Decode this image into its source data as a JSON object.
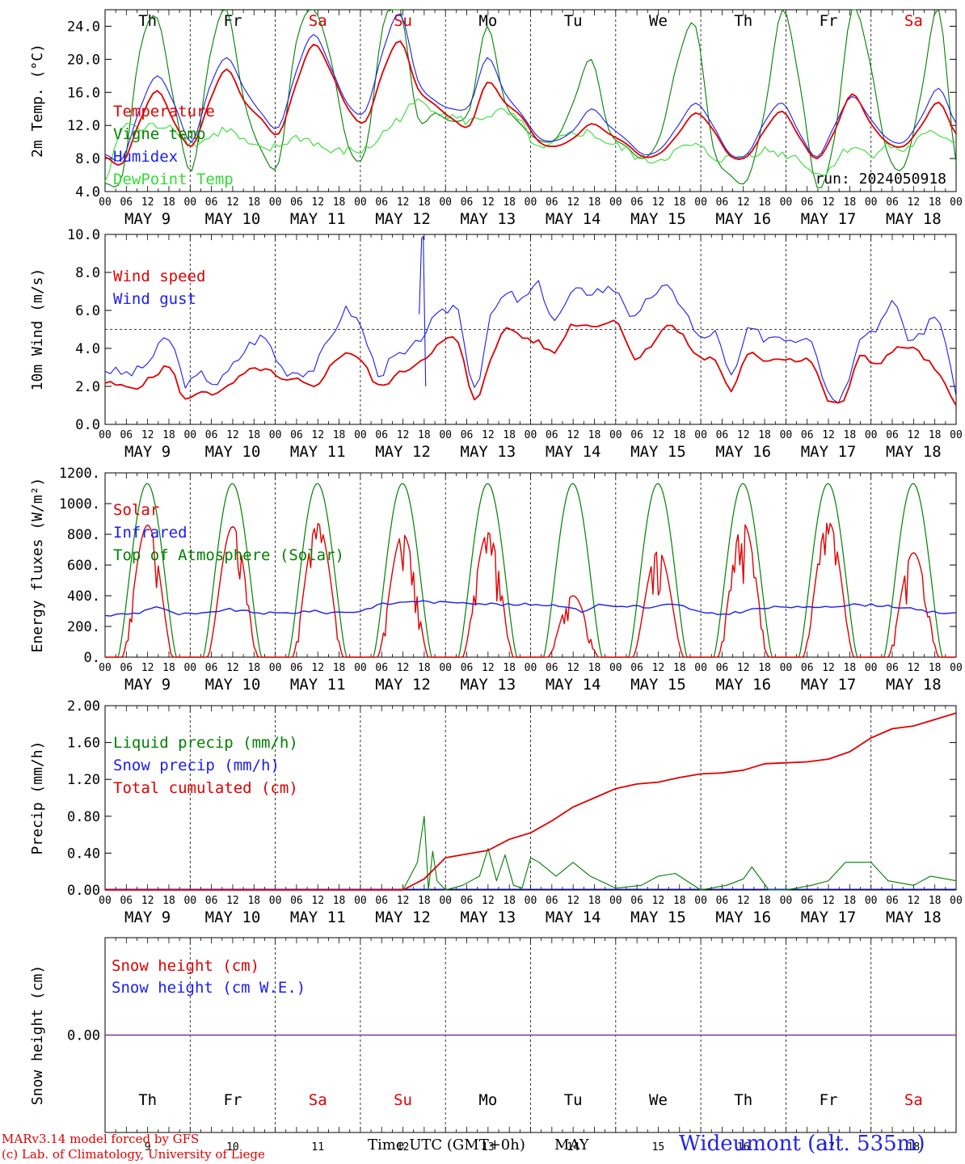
{
  "colors": {
    "red": "#e00000",
    "green": "#008000",
    "light_green": "#33dd33",
    "blue": "#1c1cf0",
    "purple": "#7733aa"
  },
  "footer": {
    "credit_line1": "MARv3.14 model forced by GFS",
    "credit_line2": "(c) Lab. of Climatology, University of Liege",
    "time_label": "Time UTC (GMT+0h)",
    "month": "MAY",
    "station": "Wideumont (alt. 535m)"
  },
  "chart_data": [
    {
      "type": "line",
      "id": "temperature",
      "ylabel": "2m Temp. (°C)",
      "ylim": [
        4.0,
        26.0
      ],
      "yticks": [
        "4.0",
        "8.0",
        "12.0",
        "16.0",
        "20.0",
        "24.0"
      ],
      "x_hours_start": "MAY 9 00 UTC",
      "x_step_hours": 6,
      "x_ticks_per_day": [
        "00",
        "06",
        "12",
        "18"
      ],
      "date_labels": [
        "MAY  9",
        "MAY 10",
        "MAY 11",
        "MAY 12",
        "MAY 13",
        "MAY 14",
        "MAY 15",
        "MAY 16",
        "MAY 17",
        "MAY 18"
      ],
      "day_names": [
        "Th",
        "Fr",
        "Sa",
        "Su",
        "Mo",
        "Tu",
        "We",
        "Th",
        "Fr",
        "Sa"
      ],
      "weekend_days": [
        2,
        3,
        9
      ],
      "annotation": "run: 2024050918",
      "legend": [
        "Temperature",
        "Vigne temp",
        "Humidex",
        "DewPoint Temp"
      ],
      "series": [
        {
          "name": "Temperature",
          "color": "red",
          "values": [
            8.2,
            7.4,
            12.5,
            16.2,
            12.3,
            9.5,
            14.8,
            18.8,
            15.0,
            12.8,
            11.0,
            17.0,
            21.8,
            18.5,
            14.0,
            12.5,
            18.5,
            22.2,
            16.5,
            14.5,
            12.8,
            12.0,
            17.2,
            14.8,
            13.0,
            10.0,
            9.5,
            10.5,
            12.2,
            11.0,
            9.8,
            8.2,
            8.7,
            11.0,
            13.5,
            11.5,
            8.3,
            8.3,
            11.5,
            13.7,
            10.5,
            8.0,
            11.3,
            15.8,
            12.5,
            10.0,
            9.5,
            12.0,
            14.8,
            11.0
          ]
        },
        {
          "name": "Humidex",
          "color": "blue",
          "values": [
            8.5,
            8.0,
            14.0,
            18.0,
            14.5,
            10.0,
            16.5,
            20.2,
            16.5,
            13.5,
            11.8,
            18.5,
            23.0,
            19.0,
            14.5,
            13.8,
            21.0,
            25.5,
            17.5,
            15.0,
            14.0,
            14.5,
            20.2,
            16.0,
            13.3,
            10.5,
            10.2,
            11.5,
            14.0,
            12.0,
            10.3,
            8.5,
            9.2,
            12.0,
            14.7,
            12.0,
            8.5,
            8.6,
            12.5,
            14.7,
            11.0,
            8.2,
            12.0,
            15.5,
            13.0,
            10.5,
            10.0,
            13.0,
            16.5,
            12.3
          ]
        },
        {
          "name": "Vigne temp",
          "color": "green",
          "values": [
            5.0,
            6.0,
            21.0,
            25.0,
            14.5,
            6.5,
            20.0,
            26.0,
            15.0,
            9.0,
            7.5,
            22.0,
            26.0,
            20.0,
            9.5,
            9.0,
            24.0,
            26.0,
            13.0,
            13.5,
            12.5,
            14.0,
            24.0,
            15.0,
            12.0,
            10.2,
            10.5,
            15.0,
            20.0,
            11.5,
            9.5,
            8.0,
            11.0,
            20.0,
            24.0,
            9.5,
            6.0,
            5.5,
            14.0,
            26.0,
            17.0,
            4.5,
            10.5,
            26.0,
            20.0,
            9.0,
            7.0,
            16.0,
            26.0,
            7.5
          ]
        },
        {
          "name": "DewPoint Temp",
          "color": "light_green",
          "values": [
            5.2,
            11.8,
            11.5,
            12.0,
            11.8,
            9.8,
            10.5,
            11.5,
            10.0,
            9.0,
            9.5,
            10.5,
            10.0,
            8.8,
            9.0,
            9.0,
            11.0,
            13.0,
            14.8,
            14.0,
            13.0,
            12.5,
            13.2,
            13.5,
            12.0,
            9.0,
            10.0,
            11.0,
            11.0,
            9.8,
            9.0,
            7.8,
            8.0,
            9.0,
            9.5,
            8.2,
            8.0,
            8.5,
            9.0,
            8.5,
            8.0,
            6.0,
            7.5,
            9.5,
            8.5,
            9.5,
            9.0,
            10.5,
            11.0,
            10.0
          ]
        }
      ]
    },
    {
      "type": "line",
      "id": "wind",
      "ylabel": "10m Wind (m/s)",
      "ylim": [
        0.0,
        10.0
      ],
      "yticks": [
        "0.0",
        "2.0",
        "4.0",
        "6.0",
        "8.0",
        "10.0"
      ],
      "reference_line": 5.0,
      "legend": [
        "Wind speed",
        "Wind gust"
      ],
      "series": [
        {
          "name": "Wind speed",
          "color": "red",
          "values": [
            2.2,
            2.0,
            2.0,
            2.5,
            3.0,
            1.3,
            1.8,
            1.6,
            2.2,
            2.8,
            2.9,
            2.3,
            2.3,
            2.0,
            3.0,
            3.8,
            3.3,
            2.0,
            2.5,
            3.0,
            3.6,
            4.3,
            4.3,
            1.2,
            3.5,
            5.0,
            4.6,
            4.3,
            3.8,
            5.2,
            5.2,
            5.3,
            5.3,
            3.5,
            4.2,
            5.2,
            4.6,
            3.5,
            3.4,
            1.8,
            3.6,
            3.4,
            3.5,
            3.4,
            3.3,
            1.3,
            1.3,
            3.5,
            3.2,
            3.8,
            4.1,
            3.5,
            2.5,
            1.0
          ]
        },
        {
          "name": "Wind gust",
          "color": "blue",
          "values": [
            2.9,
            2.7,
            2.8,
            3.6,
            4.5,
            2.2,
            2.6,
            2.2,
            3.1,
            4.2,
            4.5,
            3.0,
            2.8,
            3.0,
            4.5,
            6.0,
            5.0,
            2.8,
            3.5,
            3.8,
            5.0,
            5.8,
            6.0,
            2.0,
            5.5,
            6.8,
            6.5,
            7.3,
            5.5,
            6.8,
            7.0,
            7.1,
            7.0,
            5.5,
            6.8,
            7.1,
            6.2,
            4.5,
            4.8,
            2.5,
            4.8,
            4.6,
            4.7,
            4.5,
            4.6,
            1.8,
            1.7,
            4.7,
            5.0,
            6.5,
            4.5,
            5.0,
            5.5,
            1.5
          ]
        }
      ]
    },
    {
      "type": "line",
      "id": "energy",
      "ylabel": "Energy fluxes (W/m²)",
      "ylim": [
        0,
        1200
      ],
      "yticks": [
        "0.",
        "200.",
        "400.",
        "600.",
        "800.",
        "1000.",
        "1200."
      ],
      "legend": [
        "Solar",
        "Infrared",
        "Top of Atmosphere (Solar)"
      ],
      "series": [
        {
          "name": "Top of Atmosphere (Solar)",
          "color": "green",
          "daily_peak": 1130
        },
        {
          "name": "Solar",
          "color": "red",
          "daily_peak": [
            860,
            850,
            870,
            800,
            810,
            400,
            690,
            870,
            880,
            680
          ]
        },
        {
          "name": "Infrared",
          "color": "blue",
          "values": [
            270,
            280,
            290,
            330,
            285,
            280,
            285,
            310,
            300,
            290,
            285,
            290,
            300,
            290,
            295,
            300,
            340,
            350,
            365,
            360,
            355,
            360,
            350,
            345,
            340,
            345,
            340,
            335,
            300,
            340,
            330,
            335,
            320,
            340,
            330,
            290,
            280,
            290,
            310,
            320,
            330,
            320,
            330,
            335,
            340,
            340,
            335,
            320,
            300,
            290,
            290
          ]
        }
      ]
    },
    {
      "type": "line",
      "id": "precip",
      "ylabel": "Precip (mm/h)",
      "ylim": [
        0.0,
        2.0
      ],
      "yticks": [
        "0.00",
        "0.40",
        "0.80",
        "1.20",
        "1.60",
        "2.00"
      ],
      "legend": [
        "Liquid precip (mm/h)",
        "Snow precip (mm/h)",
        "Total cumulated (cm)"
      ],
      "series": [
        {
          "name": "Total cumulated (cm)",
          "color": "red",
          "x_days": [
            0,
            3.5,
            3.75,
            4.0,
            4.25,
            4.5,
            4.75,
            5.0,
            5.25,
            5.5,
            5.75,
            6.0,
            6.25,
            6.5,
            6.75,
            7.0,
            7.25,
            7.5,
            7.75,
            8.0,
            8.25,
            8.5,
            8.75,
            9.0,
            9.25,
            9.5,
            9.75,
            10.0
          ],
          "values": [
            0.0,
            0.0,
            0.12,
            0.35,
            0.39,
            0.43,
            0.55,
            0.62,
            0.75,
            0.9,
            1.0,
            1.1,
            1.15,
            1.17,
            1.22,
            1.26,
            1.27,
            1.3,
            1.37,
            1.38,
            1.39,
            1.42,
            1.5,
            1.65,
            1.75,
            1.78,
            1.85,
            1.92
          ]
        },
        {
          "name": "Liquid precip (mm/h)",
          "color": "green",
          "x_days": [
            3.5,
            3.67,
            3.75,
            3.8,
            3.85,
            3.9,
            4.0,
            4.2,
            4.4,
            4.5,
            4.6,
            4.7,
            4.8,
            4.9,
            5.0,
            5.1,
            5.3,
            5.5,
            5.7,
            6.0,
            6.3,
            6.5,
            6.7,
            7.0,
            7.3,
            7.5,
            7.6,
            7.8,
            8.0,
            8.3,
            8.5,
            8.7,
            9.0,
            9.2,
            9.5,
            9.7,
            10.0
          ],
          "values": [
            0.0,
            0.3,
            0.8,
            0.0,
            0.42,
            0.1,
            0.0,
            0.05,
            0.15,
            0.45,
            0.1,
            0.38,
            0.05,
            0.02,
            0.35,
            0.3,
            0.15,
            0.3,
            0.15,
            0.02,
            0.05,
            0.15,
            0.18,
            0.0,
            0.05,
            0.12,
            0.25,
            0.0,
            0.0,
            0.05,
            0.1,
            0.3,
            0.3,
            0.1,
            0.05,
            0.15,
            0.1
          ]
        },
        {
          "name": "Snow precip (mm/h)",
          "color": "blue",
          "values": [
            0.0
          ]
        }
      ]
    },
    {
      "type": "line",
      "id": "snow",
      "ylabel": "Snow height (cm)",
      "ylim": [
        -1.0,
        1.0
      ],
      "yticks": [
        "0.00"
      ],
      "legend": [
        "Snow height (cm)",
        "Snow height (cm W.E.)"
      ],
      "bottom_day_numbers": [
        "9",
        "10",
        "11",
        "12",
        "13",
        "14",
        "15",
        "16",
        "17",
        "18"
      ],
      "series": [
        {
          "name": "Snow height (cm)",
          "color": "red",
          "values": [
            0.0
          ]
        },
        {
          "name": "Snow height (cm W.E.)",
          "color": "blue",
          "values": [
            0.0
          ]
        }
      ]
    }
  ]
}
